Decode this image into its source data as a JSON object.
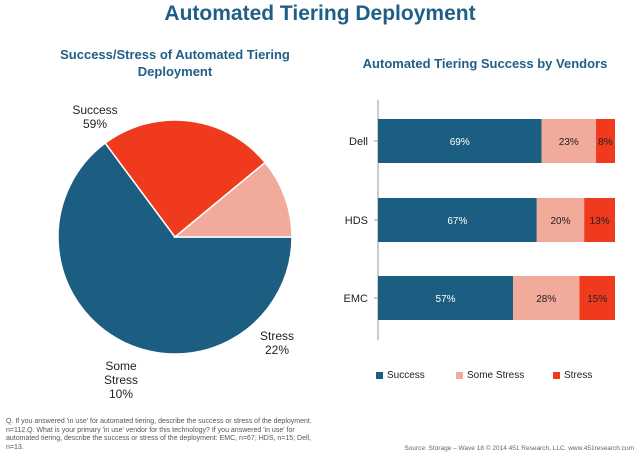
{
  "title": "Automated Tiering Deployment",
  "footnote": "Q. If you answered 'in use' for automated tiering, describe the success or stress of the deployment. n=112.Q. What is your primary 'in use' vendor for this technology? If you answered 'in use' for automated tiering, describe the success or stress of the deployment: EMC, n=67; HDS, n=15; Dell, n=13.",
  "source": "Source: Storage – Wave 18 © 2014 451 Research, LLC. www.451research.com",
  "colors": {
    "success": "#1b5e82",
    "some_stress": "#f2aa9a",
    "stress": "#f03a1e"
  },
  "chart_data": [
    {
      "type": "pie",
      "title": "Success/Stress of Automated Tiering Deployment",
      "slices": [
        {
          "label": "Success",
          "value": 59,
          "display": "59%"
        },
        {
          "label": "Stress",
          "value": 22,
          "display": "22%"
        },
        {
          "label": "Some Stress",
          "value": 10,
          "display": "10%"
        }
      ]
    },
    {
      "type": "bar",
      "orientation": "horizontal-stacked-100",
      "title": "Automated Tiering Success by Vendors",
      "categories": [
        "Dell",
        "HDS",
        "EMC"
      ],
      "series": [
        {
          "name": "Success",
          "values": [
            69,
            67,
            57
          ],
          "labels": [
            "69%",
            "67%",
            "57%"
          ]
        },
        {
          "name": "Some Stress",
          "values": [
            23,
            20,
            28
          ],
          "labels": [
            "23%",
            "20%",
            "28%"
          ]
        },
        {
          "name": "Stress",
          "values": [
            8,
            13,
            15
          ],
          "labels": [
            "8%",
            "13%",
            "15%"
          ]
        }
      ],
      "legend": "bottom"
    }
  ]
}
